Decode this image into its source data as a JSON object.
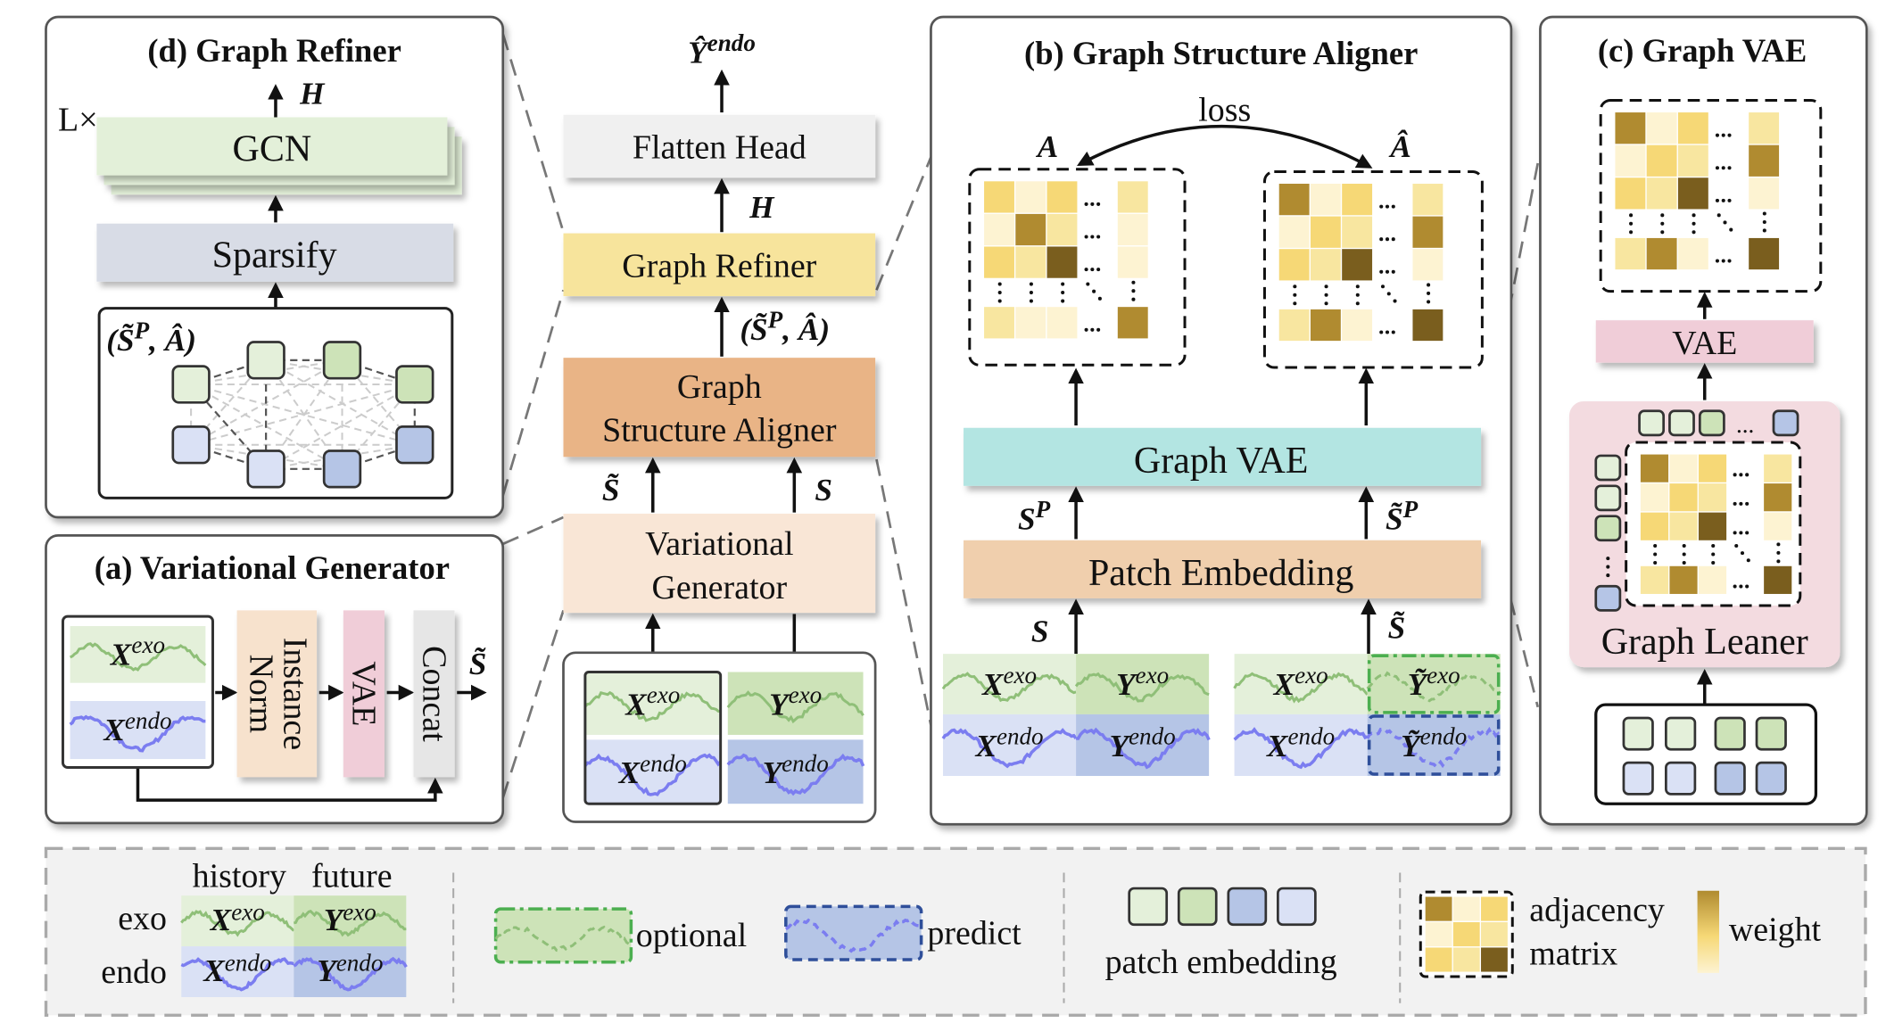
{
  "colors": {
    "exo_history": "#e4f0da",
    "exo_future": "#cde3b8",
    "endo_history": "#dae1f5",
    "endo_future": "#b5c5e6",
    "exo_wave": "#8fbf78",
    "endo_wave": "#7b7df0",
    "optional_border": "#4caf50",
    "predict_border": "#2f4f9a",
    "matrix": {
      "pale": "#fdf3d2",
      "light": "#f8e6a0",
      "yellow": "#f6d876",
      "mid": "#b08b30",
      "dark": "#7a5e1e"
    },
    "flatten_head": "#f0f0f0",
    "graph_refiner": "#f7e49c",
    "graph_structure_aligner": "#e9b486",
    "variational_generator": "#f9e6d6",
    "graph_vae": "#b3e5e2",
    "patch_embedding": "#f0cfad",
    "vae": "#f0cdd8",
    "sparsify": "#d8dce6",
    "gcn": "#e3f0d9",
    "graph_leaner": "#f3dbe0",
    "instance_norm": "#f7e2cd",
    "concat": "#e6e6e6",
    "legend_bg": "#f2f2f2"
  },
  "panel_d": {
    "title": "(d)  Graph Refiner",
    "repeat": "L×",
    "h_label": "H",
    "gcn": "GCN",
    "sparsify": "Sparsify",
    "input_label": {
      "open": "(S̃",
      "sup": "P",
      "rest": ", Â)"
    },
    "nodes": [
      "exo_history",
      "exo_history",
      "exo_future",
      "exo_future",
      "endo_history",
      "endo_history",
      "endo_future",
      "endo_future"
    ]
  },
  "main": {
    "output": {
      "base": "Ŷ",
      "sup": "endo"
    },
    "flatten_head": "Flatten Head",
    "h_label": "H",
    "graph_refiner": "Graph Refiner",
    "refiner_input": {
      "open": "(S̃",
      "sup": "P",
      "rest": ", Â)"
    },
    "gsa_line1": "Graph",
    "gsa_line2": "Structure Aligner",
    "s_tilde": "S̃",
    "s": "S",
    "vg_line1": "Variational",
    "vg_line2": "Generator",
    "inputs": [
      {
        "base": "X",
        "sup": "exo",
        "kind": "exo_history"
      },
      {
        "base": "Y",
        "sup": "exo",
        "kind": "exo_future"
      },
      {
        "base": "X",
        "sup": "endo",
        "kind": "endo_history"
      },
      {
        "base": "Y",
        "sup": "endo",
        "kind": "endo_future"
      }
    ]
  },
  "panel_a": {
    "title": "(a) Variational Generator",
    "instance_norm_line1": "Instance",
    "instance_norm_line2": "Norm",
    "vae": "VAE",
    "concat": "Concat",
    "output": "S̃",
    "inputs": [
      {
        "base": "X",
        "sup": "exo",
        "kind": "exo_history"
      },
      {
        "base": "X",
        "sup": "endo",
        "kind": "endo_history"
      }
    ]
  },
  "panel_b": {
    "title": "(b) Graph Structure Aligner",
    "loss": "loss",
    "a_label": "A",
    "a_hat_label": "Â",
    "graph_vae": "Graph VAE",
    "patch_embedding": "Patch Embedding",
    "sp_label": {
      "base": "S",
      "sup": "P"
    },
    "sp_tilde_label": {
      "base": "S̃",
      "sup": "P"
    },
    "s_label": "S",
    "s_tilde_label": "S̃",
    "matrix_a": [
      [
        "yellow",
        "pale",
        "yellow",
        "light"
      ],
      [
        "pale",
        "mid",
        "light",
        "pale"
      ],
      [
        "yellow",
        "light",
        "dark",
        "pale"
      ],
      [
        "light",
        "pale",
        "pale",
        "mid"
      ]
    ],
    "matrix_a_hat": [
      [
        "mid",
        "pale",
        "yellow",
        "light"
      ],
      [
        "pale",
        "yellow",
        "light",
        "mid"
      ],
      [
        "yellow",
        "light",
        "dark",
        "pale"
      ],
      [
        "light",
        "mid",
        "pale",
        "dark"
      ]
    ],
    "left_inputs": [
      {
        "base": "X",
        "sup": "exo",
        "kind": "exo_history"
      },
      {
        "base": "Y",
        "sup": "exo",
        "kind": "exo_future"
      },
      {
        "base": "X",
        "sup": "endo",
        "kind": "endo_history"
      },
      {
        "base": "Y",
        "sup": "endo",
        "kind": "endo_future"
      }
    ],
    "right_inputs": [
      {
        "base": "X",
        "sup": "exo",
        "kind": "exo_history"
      },
      {
        "base": "Ỹ",
        "sup": "exo",
        "kind": "exo_future",
        "border": "optional"
      },
      {
        "base": "X",
        "sup": "endo",
        "kind": "endo_history"
      },
      {
        "base": "Ỹ",
        "sup": "endo",
        "kind": "endo_future",
        "border": "predict"
      }
    ]
  },
  "panel_c": {
    "title": "(c) Graph VAE",
    "vae": "VAE",
    "graph_leaner": "Graph  Leaner",
    "matrix_out": [
      [
        "mid",
        "pale",
        "yellow",
        "light"
      ],
      [
        "pale",
        "yellow",
        "light",
        "mid"
      ],
      [
        "yellow",
        "light",
        "dark",
        "pale"
      ],
      [
        "light",
        "mid",
        "pale",
        "dark"
      ]
    ],
    "matrix_leaner": [
      [
        "mid",
        "pale",
        "yellow",
        "light"
      ],
      [
        "pale",
        "yellow",
        "light",
        "mid"
      ],
      [
        "yellow",
        "light",
        "dark",
        "pale"
      ],
      [
        "light",
        "mid",
        "pale",
        "dark"
      ]
    ],
    "ellipsis": "...",
    "patches_top": [
      "exo_history",
      "exo_history",
      "exo_future",
      "exo_future"
    ],
    "patches_bottom": [
      "endo_history",
      "endo_history",
      "endo_future",
      "endo_future"
    ]
  },
  "legend": {
    "history": "history",
    "future": "future",
    "exo": "exo",
    "endo": "endo",
    "tiles": [
      {
        "base": "X",
        "sup": "exo",
        "kind": "exo_history"
      },
      {
        "base": "Y",
        "sup": "exo",
        "kind": "exo_future"
      },
      {
        "base": "X",
        "sup": "endo",
        "kind": "endo_history"
      },
      {
        "base": "Y",
        "sup": "endo",
        "kind": "endo_future"
      }
    ],
    "optional": "optional",
    "predict": "predict",
    "patch_embedding": "patch embedding",
    "patch_colors": [
      "exo_history",
      "exo_future",
      "endo_future",
      "endo_history"
    ],
    "adjacency": "adjacency",
    "matrix": "matrix",
    "matrix_sample": [
      [
        "mid",
        "pale",
        "yellow"
      ],
      [
        "pale",
        "yellow",
        "light"
      ],
      [
        "yellow",
        "light",
        "dark"
      ]
    ],
    "weight": "weight"
  }
}
